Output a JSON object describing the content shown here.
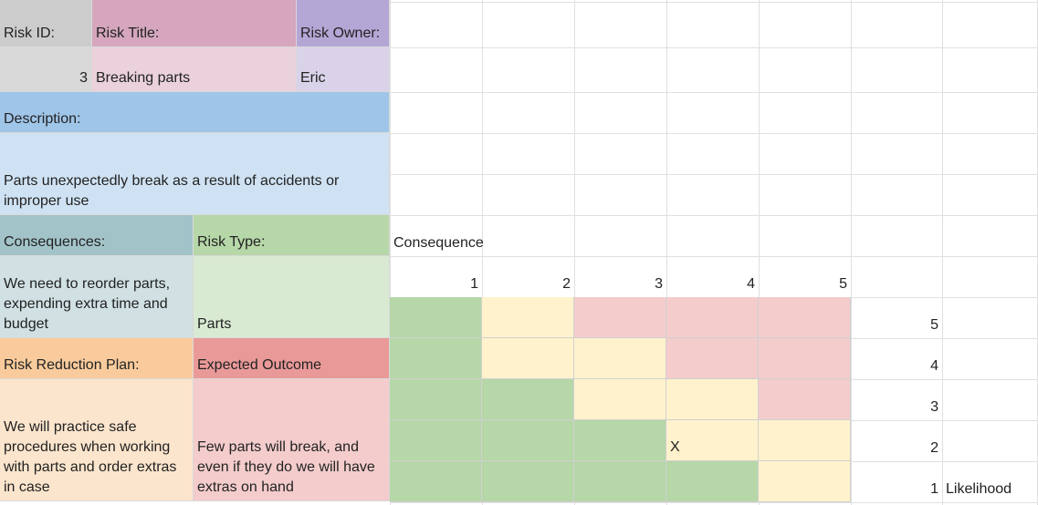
{
  "colors": {
    "gray_header": "#cccccc",
    "gray_value": "#d9d9d9",
    "pink_header": "#d5a6bd",
    "pink_value": "#ead1dc",
    "purple_header": "#b4a7d6",
    "purple_value": "#d9d2e9",
    "blue_header": "#9fc5e8",
    "blue_value": "#cfe2f3",
    "teal_header": "#a2c4c9",
    "teal_value": "#d0e0e3",
    "green_header": "#b6d7a8",
    "green_value": "#d9ead3",
    "orange_header": "#f9cb9c",
    "orange_value": "#fce5cd",
    "red_header": "#ea9999",
    "red_value": "#f4cccc",
    "matrix_green": "#b6d7a8",
    "matrix_yellow": "#fff2cc",
    "matrix_red": "#f4cccc"
  },
  "risk": {
    "id_label": "Risk ID:",
    "title_label": "Risk Title:",
    "owner_label": "Risk Owner:",
    "id_value": "3",
    "title_value": "Breaking parts",
    "owner_value": "Eric",
    "description_label": "Description:",
    "description_value": "Parts unexpectedly break as a result of accidents or improper use",
    "consequences_label": "Consequences:",
    "consequences_value": "We need to reorder parts, expending extra time and budget",
    "type_label": "Risk Type:",
    "type_value": "Parts",
    "reduction_label": "Risk Reduction Plan:",
    "reduction_value": "We will practice safe procedures when working with parts and order extras in case",
    "outcome_label": "Expected Outcome",
    "outcome_value": "Few parts will break, and even if they do we will have extras on hand"
  },
  "matrix": {
    "consequence_label": "Consequence",
    "likelihood_label": "Likelihood",
    "consequence_values": [
      "1",
      "2",
      "3",
      "4",
      "5"
    ],
    "likelihood_values": [
      "5",
      "4",
      "3",
      "2",
      "1"
    ],
    "colors": [
      [
        "green",
        "yellow",
        "red",
        "red",
        "red"
      ],
      [
        "green",
        "yellow",
        "yellow",
        "red",
        "red"
      ],
      [
        "green",
        "green",
        "yellow",
        "yellow",
        "red"
      ],
      [
        "green",
        "green",
        "green",
        "yellow",
        "yellow"
      ],
      [
        "green",
        "green",
        "green",
        "green",
        "yellow"
      ]
    ],
    "marker": "X",
    "marker_likelihood": 2,
    "marker_consequence": 4
  }
}
